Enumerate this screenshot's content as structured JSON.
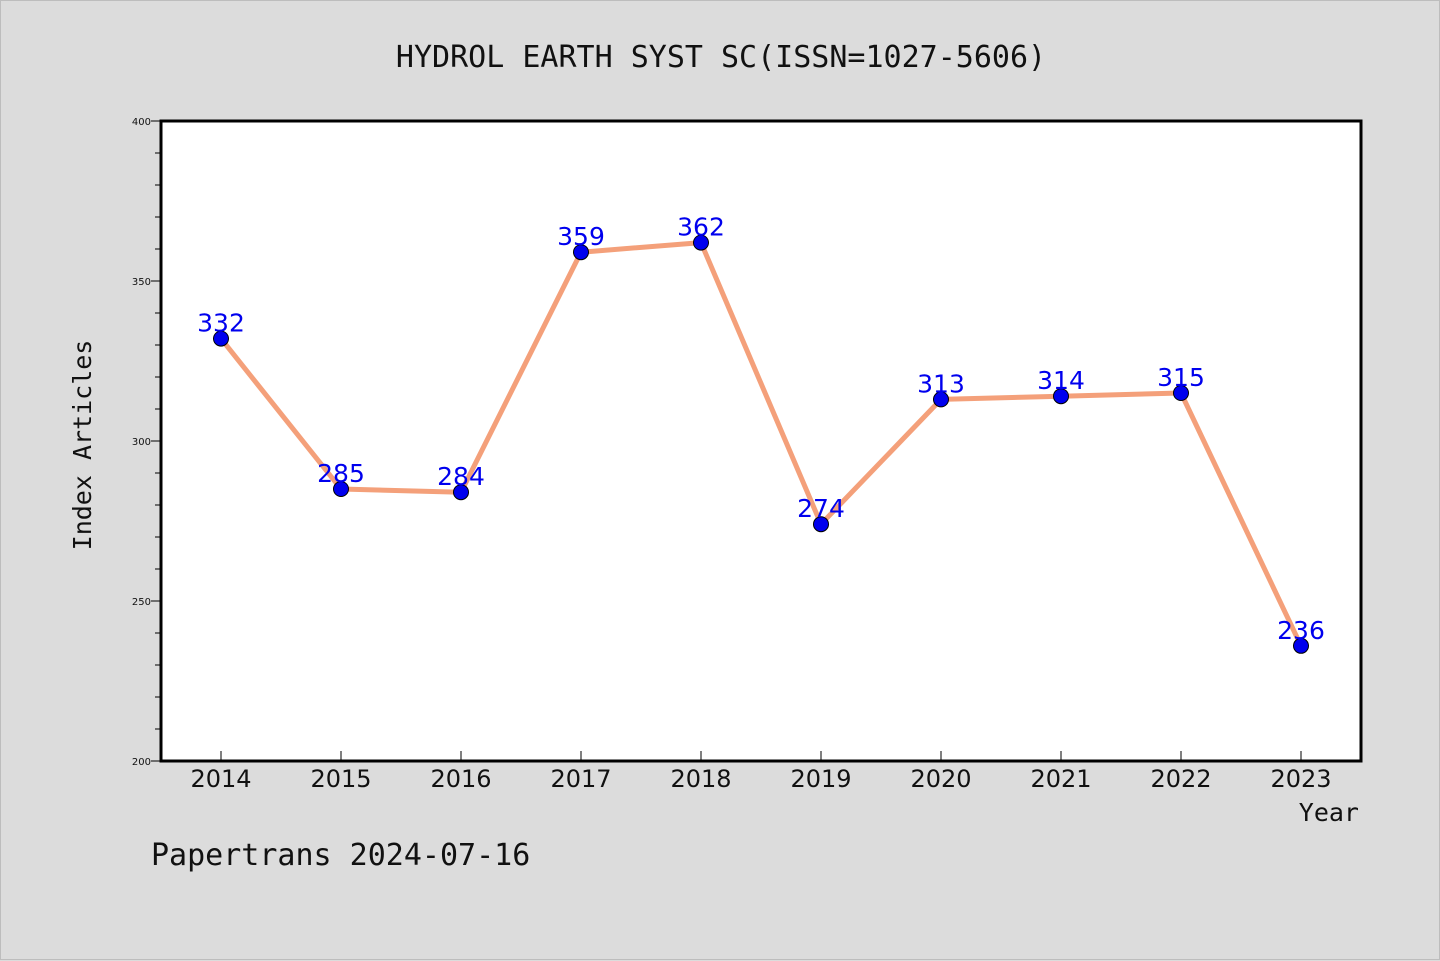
{
  "chart_data": {
    "type": "line",
    "title": "HYDROL EARTH SYST SC(ISSN=1027-5606)",
    "xlabel": "Year",
    "ylabel": "Index Articles",
    "categories": [
      "2014",
      "2015",
      "2016",
      "2017",
      "2018",
      "2019",
      "2020",
      "2021",
      "2022",
      "2023"
    ],
    "series": [
      {
        "values": [
          332,
          285,
          284,
          359,
          362,
          274,
          313,
          314,
          315,
          236
        ]
      }
    ],
    "ylim": [
      200,
      400
    ],
    "yticks": [
      200,
      250,
      300,
      350,
      400
    ],
    "grid": false,
    "legend": "none",
    "colors": {
      "line": "#f4a07a",
      "marker": "#0000ee",
      "label": "#0000ee",
      "background": "#dcdcdc",
      "plot": "#ffffff"
    }
  },
  "footer": "Papertrans 2024-07-16"
}
